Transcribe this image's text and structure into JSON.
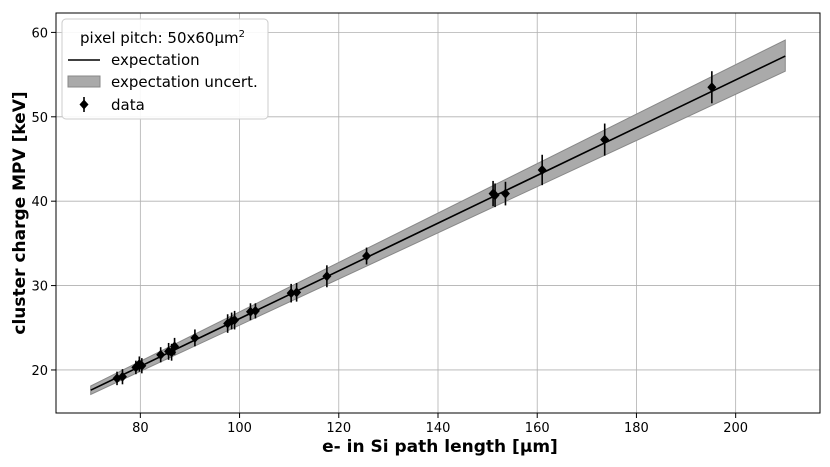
{
  "chart_data": {
    "type": "scatter",
    "xlabel": "e- in Si path length [μm]",
    "ylabel": "cluster charge MPV [keV]",
    "xlim": [
      63,
      217
    ],
    "ylim": [
      14.9,
      62.3
    ],
    "xticks": [
      80,
      100,
      120,
      140,
      160,
      180,
      200
    ],
    "yticks": [
      20,
      30,
      40,
      50,
      60
    ],
    "grid": true,
    "legend": {
      "placement": "top-left",
      "title_prefix": "pixel pitch: 50x60",
      "title_unit": "μm",
      "title_sup": "2",
      "entries": [
        "expectation",
        "expectation uncert.",
        "data"
      ]
    },
    "expectation": {
      "x": [
        70,
        210
      ],
      "y": [
        17.6,
        57.2
      ],
      "uncert_low": [
        17.1,
        55.4
      ],
      "uncert_high": [
        18.1,
        59.1
      ]
    },
    "data": [
      {
        "x": 75.3,
        "y": 19.0,
        "err": 0.8
      },
      {
        "x": 76.4,
        "y": 19.2,
        "err": 0.9
      },
      {
        "x": 79.1,
        "y": 20.3,
        "err": 0.8
      },
      {
        "x": 79.8,
        "y": 20.7,
        "err": 0.9
      },
      {
        "x": 80.3,
        "y": 20.5,
        "err": 0.9
      },
      {
        "x": 84.1,
        "y": 21.8,
        "err": 0.9
      },
      {
        "x": 85.7,
        "y": 22.2,
        "err": 1.0
      },
      {
        "x": 86.3,
        "y": 22.1,
        "err": 1.0
      },
      {
        "x": 86.9,
        "y": 22.8,
        "err": 1.0
      },
      {
        "x": 91.0,
        "y": 23.8,
        "err": 1.0
      },
      {
        "x": 97.6,
        "y": 25.5,
        "err": 1.1
      },
      {
        "x": 98.4,
        "y": 25.8,
        "err": 1.0
      },
      {
        "x": 99.0,
        "y": 25.9,
        "err": 1.1
      },
      {
        "x": 102.2,
        "y": 26.9,
        "err": 1.0
      },
      {
        "x": 103.2,
        "y": 27.0,
        "err": 0.9
      },
      {
        "x": 110.4,
        "y": 29.1,
        "err": 1.1
      },
      {
        "x": 111.5,
        "y": 29.2,
        "err": 1.1
      },
      {
        "x": 117.6,
        "y": 31.1,
        "err": 1.3
      },
      {
        "x": 125.6,
        "y": 33.5,
        "err": 1.0
      },
      {
        "x": 151.1,
        "y": 40.9,
        "err": 1.5
      },
      {
        "x": 151.5,
        "y": 40.7,
        "err": 1.4
      },
      {
        "x": 153.6,
        "y": 40.9,
        "err": 1.4
      },
      {
        "x": 161.0,
        "y": 43.7,
        "err": 1.8
      },
      {
        "x": 173.6,
        "y": 47.3,
        "err": 1.9
      },
      {
        "x": 195.2,
        "y": 53.5,
        "err": 1.9
      }
    ]
  }
}
